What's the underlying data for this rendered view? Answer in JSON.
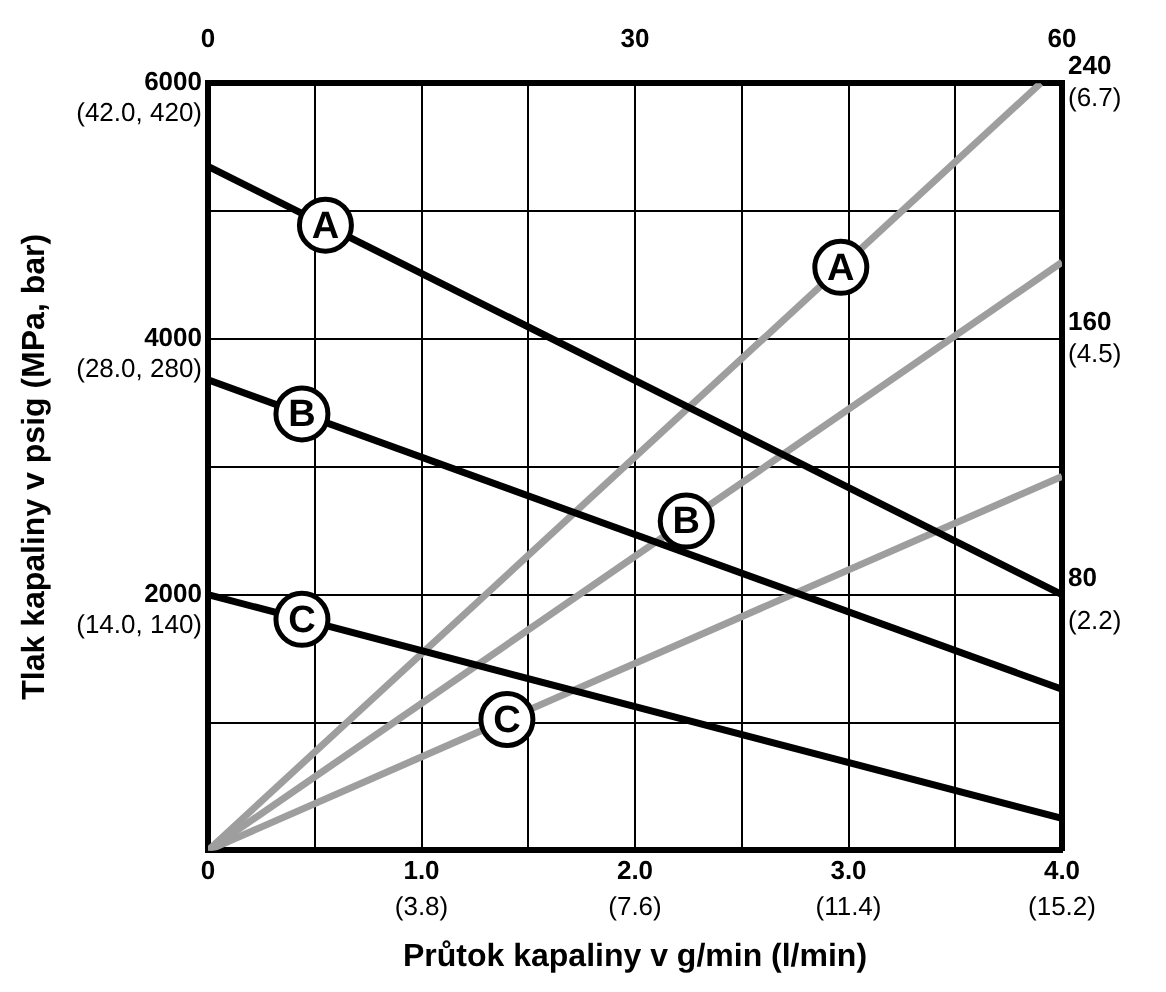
{
  "chart_data": {
    "type": "line",
    "xlabel": "Průtok kapaliny v g/min (l/min)",
    "ylabel": "Tlak kapaliny v psig (MPa, bar)",
    "xlim": [
      0,
      4.0
    ],
    "xticks": [
      0,
      {
        "value": 0.5,
        "label": null
      },
      {
        "value": 1.0,
        "label": "1.0"
      },
      {
        "value": 1.5,
        "label": null
      },
      {
        "value": 2.0,
        "label": "2.0"
      },
      {
        "value": 2.5,
        "label": null
      },
      {
        "value": 3.0,
        "label": "3.0"
      },
      {
        "value": 3.5,
        "label": null
      },
      {
        "value": 4.0,
        "label": "4.0"
      }
    ],
    "ylim": [
      0,
      6000
    ],
    "yticks": [
      {
        "value": 0,
        "label": null
      },
      {
        "value": 1000,
        "label": null
      },
      2000,
      {
        "value": 3000,
        "label": null
      },
      4000,
      {
        "value": 5000,
        "label": null
      },
      6000
    ],
    "x2lim": [
      0,
      60
    ],
    "x2ticks": [
      0,
      30,
      60
    ],
    "y2lim": [
      0,
      240
    ],
    "y2ticks": [
      80,
      160,
      240
    ],
    "y3lim": [
      0.09,
      6.7
    ],
    "y3ticks": [
      {
        "value": 2.2,
        "label": "(2.2)"
      },
      {
        "value": 4.5,
        "label": "(4.5)"
      },
      {
        "value": 6.7,
        "label": "(6.7)"
      }
    ],
    "annotations": [
      "(3.8)",
      "(7.6)",
      "(11.4)",
      "(15.2)",
      "(14.0, 140)",
      "(28.0, 280)",
      "(42.0, 420)"
    ],
    "grid": true,
    "series": [
      {
        "name": "A",
        "color": "#000000",
        "x": [
          0,
          4.0
        ],
        "values": [
          5350,
          2000
        ]
      },
      {
        "name": "B",
        "color": "#000000",
        "x": [
          0,
          4.0
        ],
        "values": [
          3680,
          1260
        ]
      },
      {
        "name": "C",
        "color": "#000000",
        "x": [
          0,
          4.0
        ],
        "values": [
          2000,
          250
        ]
      },
      {
        "name": "A",
        "color": "#9e9e9e",
        "axis": "y2",
        "x": [
          0,
          3.9
        ],
        "values": [
          0,
          240
        ]
      },
      {
        "name": "B",
        "color": "#9e9e9e",
        "axis": "y2",
        "x": [
          0,
          4.0
        ],
        "values": [
          0,
          184
        ]
      },
      {
        "name": "C",
        "color": "#9e9e9e",
        "axis": "y2",
        "x": [
          0,
          4.0
        ],
        "values": [
          0,
          117
        ]
      }
    ]
  }
}
